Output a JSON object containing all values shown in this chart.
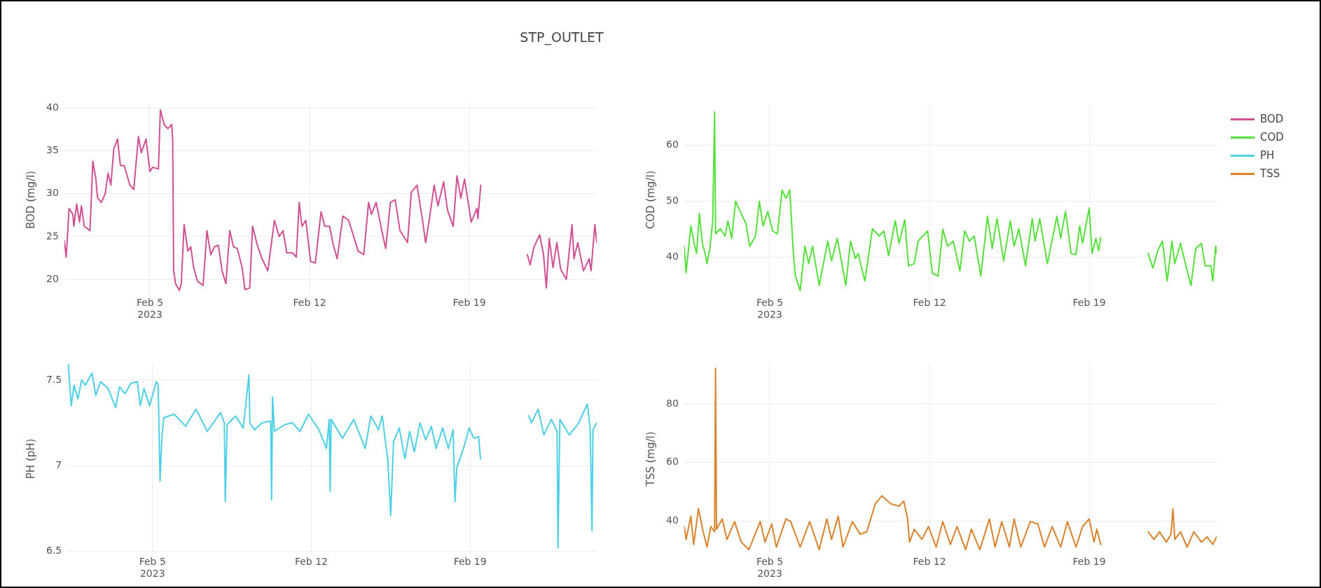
{
  "chart_data": [
    {
      "type": "line",
      "title": "STP_OUTLET",
      "ylabel": "BOD (mg/l)",
      "xlim": [
        "2023-02-01T06:00",
        "2023-02-24T14:00"
      ],
      "xticks": [
        {
          "value": "2023-02-05",
          "label": "Feb 5\n2023"
        },
        {
          "value": "2023-02-12",
          "label": "Feb 12"
        },
        {
          "value": "2023-02-19",
          "label": "Feb 19"
        }
      ],
      "ylim": [
        18.1,
        40.5
      ],
      "yticks": [
        20,
        25,
        30,
        35,
        40
      ],
      "grid": true,
      "legend": "top right",
      "marker": "none",
      "series": [
        {
          "name": "BOD",
          "color": "#d14f93",
          "x": [
            "2023-02-01T06:00",
            "2023-02-01T08:00",
            "2023-02-01T11:00",
            "2023-02-01T15:00",
            "2023-02-01T16:00",
            "2023-02-01T19:00",
            "2023-02-01T22:00",
            "2023-02-02T00:00",
            "2023-02-02T03:00",
            "2023-02-02T09:00",
            "2023-02-02T12:00",
            "2023-02-02T15:00",
            "2023-02-02T17:00",
            "2023-02-02T21:00",
            "2023-02-03T01:00",
            "2023-02-03T04:00",
            "2023-02-03T07:00",
            "2023-02-03T10:00",
            "2023-02-03T14:00",
            "2023-02-03T17:00",
            "2023-02-03T21:00",
            "2023-02-04T03:00",
            "2023-02-04T07:00",
            "2023-02-04T12:00",
            "2023-02-04T15:00",
            "2023-02-04T20:00",
            "2023-02-05T00:00",
            "2023-02-05T03:00",
            "2023-02-05T09:00",
            "2023-02-05T11:00",
            "2023-02-05T15:00",
            "2023-02-05T19:00",
            "2023-02-05T23:00",
            "2023-02-06T00:00",
            "2023-02-06T01:00",
            "2023-02-06T03:00",
            "2023-02-06T07:00",
            "2023-02-06T09:00",
            "2023-02-06T12:00",
            "2023-02-06T16:00",
            "2023-02-06T19:00",
            "2023-02-06T22:00",
            "2023-02-07T02:00",
            "2023-02-07T08:00",
            "2023-02-07T12:00",
            "2023-02-07T16:00",
            "2023-02-07T20:00",
            "2023-02-08T00:00",
            "2023-02-08T04:00",
            "2023-02-08T08:00",
            "2023-02-08T12:00",
            "2023-02-08T16:00",
            "2023-02-08T20:00",
            "2023-02-09T01:00",
            "2023-02-09T04:00",
            "2023-02-09T09:00",
            "2023-02-09T12:00",
            "2023-02-09T17:00",
            "2023-02-09T22:00",
            "2023-02-10T04:00",
            "2023-02-10T11:00",
            "2023-02-10T16:00",
            "2023-02-10T20:00",
            "2023-02-11T00:00",
            "2023-02-11T06:00",
            "2023-02-11T10:00",
            "2023-02-11T13:00",
            "2023-02-11T16:00",
            "2023-02-11T20:00",
            "2023-02-12T01:00",
            "2023-02-12T06:00",
            "2023-02-12T12:00",
            "2023-02-12T16:00",
            "2023-02-12T21:00",
            "2023-02-13T01:00",
            "2023-02-13T05:00",
            "2023-02-13T11:00",
            "2023-02-13T17:00",
            "2023-02-13T21:00",
            "2023-02-14T03:00",
            "2023-02-14T09:00",
            "2023-02-14T14:00",
            "2023-02-14T17:00",
            "2023-02-14T22:00",
            "2023-02-15T03:00",
            "2023-02-15T08:00",
            "2023-02-15T13:00",
            "2023-02-15T18:00",
            "2023-02-15T23:00",
            "2023-02-16T07:00",
            "2023-02-16T11:00",
            "2023-02-16T17:00",
            "2023-02-16T23:00",
            "2023-02-17T02:00",
            "2023-02-17T06:00",
            "2023-02-17T11:00",
            "2023-02-17T15:00",
            "2023-02-17T21:00",
            "2023-02-18T01:00",
            "2023-02-18T07:00",
            "2023-02-18T11:00",
            "2023-02-18T15:00",
            "2023-02-18T19:00",
            "2023-02-19T02:00",
            "2023-02-19T08:00",
            "2023-02-19T09:00",
            "2023-02-19T12:00",
            "2023-02-20T12:00",
            "2023-02-21T13:00",
            "2023-02-21T16:00",
            "2023-02-21T20:00",
            "2023-02-22T02:00",
            "2023-02-22T06:00",
            "2023-02-22T09:00",
            "2023-02-22T12:00",
            "2023-02-22T16:00",
            "2023-02-22T20:00",
            "2023-02-23T00:00",
            "2023-02-23T06:00",
            "2023-02-23T12:00",
            "2023-02-23T14:00",
            "2023-02-23T18:00",
            "2023-02-24T00:00",
            "2023-02-24T06:00",
            "2023-02-24T08:00",
            "2023-02-24T12:00",
            "2023-02-24T14:00"
          ],
          "values": [
            24.5,
            22.6,
            28.3,
            27.6,
            26.2,
            28.8,
            26.7,
            28.6,
            26.2,
            25.7,
            33.8,
            31.9,
            29.5,
            29.0,
            30.0,
            32.4,
            31.0,
            35.2,
            36.4,
            33.3,
            33.3,
            31.0,
            30.5,
            36.7,
            34.8,
            36.4,
            32.6,
            33.1,
            32.9,
            39.8,
            38.1,
            37.6,
            38.1,
            36.2,
            21.0,
            19.5,
            18.7,
            19.5,
            26.4,
            23.3,
            23.8,
            21.4,
            19.8,
            19.3,
            25.7,
            22.9,
            23.8,
            24.0,
            21.0,
            19.5,
            25.7,
            23.8,
            23.6,
            21.4,
            18.8,
            19.0,
            26.2,
            24.0,
            22.4,
            21.0,
            26.9,
            25.0,
            25.7,
            23.1,
            23.1,
            22.6,
            29.0,
            26.2,
            26.9,
            22.1,
            21.9,
            27.9,
            26.2,
            26.2,
            24.0,
            22.4,
            27.4,
            26.9,
            25.5,
            23.3,
            22.9,
            29.0,
            27.6,
            29.0,
            26.2,
            23.6,
            29.0,
            29.3,
            25.7,
            24.3,
            30.2,
            31.0,
            26.7,
            24.3,
            27.1,
            31.0,
            28.6,
            31.4,
            28.1,
            26.2,
            32.1,
            29.5,
            31.7,
            26.7,
            28.3,
            27.1,
            31.0,
            null,
            22.9,
            21.7,
            23.8,
            25.2,
            22.9,
            19.0,
            24.8,
            21.4,
            24.3,
            21.2,
            20.0,
            26.4,
            22.4,
            24.3,
            21.0,
            22.4,
            21.0,
            26.4,
            24.3
          ]
        }
      ]
    },
    {
      "type": "line",
      "ylabel": "COD (mg/l)",
      "xlim": [
        "2023-02-01T06:00",
        "2023-02-24T14:00"
      ],
      "xticks": [
        {
          "value": "2023-02-05",
          "label": "Feb 5\n2023"
        },
        {
          "value": "2023-02-12",
          "label": "Feb 12"
        },
        {
          "value": "2023-02-19",
          "label": "Feb 19"
        }
      ],
      "ylim": [
        33.2,
        67.3
      ],
      "yticks": [
        40,
        50,
        60
      ],
      "grid": true,
      "legend": "top right",
      "marker": "none",
      "series": [
        {
          "name": "COD",
          "color": "#55e03c",
          "x": [
            "2023-02-01T06:00",
            "2023-02-01T08:00",
            "2023-02-01T13:00",
            "2023-02-01T16:00",
            "2023-02-01T19:00",
            "2023-02-01T22:00",
            "2023-02-02T01:00",
            "2023-02-02T04:00",
            "2023-02-02T06:00",
            "2023-02-02T09:00",
            "2023-02-02T12:00",
            "2023-02-02T14:00",
            "2023-02-02T15:00",
            "2023-02-02T20:00",
            "2023-02-03T01:00",
            "2023-02-03T04:00",
            "2023-02-03T08:00",
            "2023-02-03T12:00",
            "2023-02-03T18:00",
            "2023-02-03T23:00",
            "2023-02-04T03:00",
            "2023-02-04T09:00",
            "2023-02-04T13:00",
            "2023-02-04T17:00",
            "2023-02-04T22:00",
            "2023-02-05T03:00",
            "2023-02-05T08:00",
            "2023-02-05T13:00",
            "2023-02-05T17:00",
            "2023-02-05T21:00",
            "2023-02-06T01:00",
            "2023-02-06T03:00",
            "2023-02-06T08:00",
            "2023-02-06T13:00",
            "2023-02-06T17:00",
            "2023-02-06T21:00",
            "2023-02-07T04:00",
            "2023-02-07T13:00",
            "2023-02-07T17:00",
            "2023-02-07T23:00",
            "2023-02-08T08:00",
            "2023-02-08T13:00",
            "2023-02-08T18:00",
            "2023-02-08T21:00",
            "2023-02-09T04:00",
            "2023-02-09T12:00",
            "2023-02-09T19:00",
            "2023-02-10T00:00",
            "2023-02-10T05:00",
            "2023-02-10T12:00",
            "2023-02-10T16:00",
            "2023-02-10T22:00",
            "2023-02-11T02:00",
            "2023-02-11T08:00",
            "2023-02-11T12:00",
            "2023-02-11T17:00",
            "2023-02-11T22:00",
            "2023-02-12T03:00",
            "2023-02-12T09:00",
            "2023-02-12T14:00",
            "2023-02-12T19:00",
            "2023-02-13T01:00",
            "2023-02-13T08:00",
            "2023-02-13T13:00",
            "2023-02-13T18:00",
            "2023-02-13T23:00",
            "2023-02-14T06:00",
            "2023-02-14T13:00",
            "2023-02-14T18:00",
            "2023-02-14T23:00",
            "2023-02-15T06:00",
            "2023-02-15T13:00",
            "2023-02-15T17:00",
            "2023-02-15T22:00",
            "2023-02-16T05:00",
            "2023-02-16T12:00",
            "2023-02-16T15:00",
            "2023-02-16T20:00",
            "2023-02-17T04:00",
            "2023-02-17T14:00",
            "2023-02-17T18:00",
            "2023-02-17T23:00",
            "2023-02-18T05:00",
            "2023-02-18T10:00",
            "2023-02-18T14:00",
            "2023-02-18T17:00",
            "2023-02-19T00:00",
            "2023-02-19T03:00",
            "2023-02-19T07:00",
            "2023-02-19T10:00",
            "2023-02-19T12:00",
            "2023-02-20T12:00",
            "2023-02-21T14:00",
            "2023-02-21T19:00",
            "2023-02-22T00:00",
            "2023-02-22T05:00",
            "2023-02-22T10:00",
            "2023-02-22T15:00",
            "2023-02-22T18:00",
            "2023-02-23T00:00",
            "2023-02-23T07:00",
            "2023-02-23T11:00",
            "2023-02-23T16:00",
            "2023-02-23T22:00",
            "2023-02-24T02:00",
            "2023-02-24T08:00",
            "2023-02-24T10:00",
            "2023-02-24T13:00",
            "2023-02-24T14:00"
          ],
          "values": [
            42.0,
            37.3,
            45.6,
            42.9,
            40.7,
            47.8,
            42.5,
            40.7,
            38.9,
            41.6,
            46.5,
            65.9,
            44.2,
            45.1,
            43.8,
            46.5,
            43.4,
            50.0,
            47.8,
            46.0,
            42.0,
            43.8,
            50.0,
            45.6,
            48.2,
            44.7,
            44.2,
            52.0,
            50.5,
            52.0,
            40.3,
            36.7,
            34.1,
            42.0,
            38.9,
            42.0,
            35.0,
            42.9,
            39.4,
            43.4,
            35.0,
            42.9,
            39.8,
            40.7,
            35.8,
            45.1,
            43.8,
            44.7,
            40.3,
            46.5,
            42.5,
            46.7,
            38.5,
            38.9,
            42.9,
            43.8,
            44.7,
            37.2,
            36.7,
            45.0,
            42.0,
            42.9,
            37.6,
            44.7,
            42.9,
            43.8,
            36.7,
            47.3,
            41.6,
            46.9,
            39.4,
            46.5,
            42.0,
            45.1,
            38.5,
            46.9,
            42.9,
            46.9,
            38.9,
            47.3,
            43.4,
            48.2,
            40.7,
            40.5,
            45.6,
            42.5,
            48.8,
            40.7,
            43.4,
            41.2,
            43.5,
            null,
            40.7,
            38.1,
            41.2,
            42.9,
            35.8,
            42.9,
            38.9,
            42.5,
            37.6,
            35.0,
            41.6,
            42.5,
            38.5,
            38.5,
            35.8,
            42.0,
            40.7
          ]
        }
      ]
    },
    {
      "type": "line",
      "ylabel": "PH (pH)",
      "xlim": [
        "2023-02-01T06:00",
        "2023-02-24T14:00"
      ],
      "xticks": [
        {
          "value": "2023-02-05",
          "label": "Feb 5\n2023"
        },
        {
          "value": "2023-02-12",
          "label": "Feb 12"
        },
        {
          "value": "2023-02-19",
          "label": "Feb 19"
        }
      ],
      "ylim": [
        6.48,
        7.6
      ],
      "yticks": [
        6.5,
        7,
        7.5
      ],
      "grid": true,
      "legend": "top right",
      "marker": "none",
      "series": [
        {
          "name": "PH",
          "color": "#4dcfe6",
          "x": [
            "2023-02-01T07:00",
            "2023-02-01T10:00",
            "2023-02-01T13:00",
            "2023-02-01T17:00",
            "2023-02-01T21:00",
            "2023-02-02T01:00",
            "2023-02-02T08:00",
            "2023-02-02T12:00",
            "2023-02-02T17:00",
            "2023-02-03T01:00",
            "2023-02-03T09:00",
            "2023-02-03T13:00",
            "2023-02-03T19:00",
            "2023-02-04T01:00",
            "2023-02-04T08:00",
            "2023-02-04T11:00",
            "2023-02-04T15:00",
            "2023-02-04T21:00",
            "2023-02-05T04:00",
            "2023-02-05T06:00",
            "2023-02-05T08:00",
            "2023-02-05T10:00",
            "2023-02-05T12:00",
            "2023-02-05T23:00",
            "2023-02-06T11:00",
            "2023-02-06T22:00",
            "2023-02-07T10:00",
            "2023-02-08T00:00",
            "2023-02-08T04:00",
            "2023-02-08T05:00",
            "2023-02-08T07:00",
            "2023-02-08T16:00",
            "2023-02-09T00:00",
            "2023-02-09T06:00",
            "2023-02-09T07:00",
            "2023-02-09T12:00",
            "2023-02-09T20:00",
            "2023-02-10T05:00",
            "2023-02-10T06:00",
            "2023-02-10T07:00",
            "2023-02-10T09:00",
            "2023-02-10T20:00",
            "2023-02-11T04:00",
            "2023-02-11T12:00",
            "2023-02-11T21:00",
            "2023-02-12T08:00",
            "2023-02-12T16:00",
            "2023-02-12T19:00",
            "2023-02-12T20:00",
            "2023-02-12T21:00",
            "2023-02-13T09:00",
            "2023-02-13T21:00",
            "2023-02-14T09:00",
            "2023-02-14T15:00",
            "2023-02-14T23:00",
            "2023-02-15T03:00",
            "2023-02-15T09:00",
            "2023-02-15T12:00",
            "2023-02-15T15:00",
            "2023-02-15T21:00",
            "2023-02-16T03:00",
            "2023-02-16T08:00",
            "2023-02-16T13:00",
            "2023-02-16T19:00",
            "2023-02-17T01:00",
            "2023-02-17T07:00",
            "2023-02-17T12:00",
            "2023-02-17T19:00",
            "2023-02-18T01:00",
            "2023-02-18T06:00",
            "2023-02-18T08:00",
            "2023-02-18T10:00",
            "2023-02-18T17:00",
            "2023-02-18T23:00",
            "2023-02-19T04:00",
            "2023-02-19T09:00",
            "2023-02-19T11:00",
            "2023-02-20T12:00",
            "2023-02-21T14:00",
            "2023-02-21T17:00",
            "2023-02-22T00:00",
            "2023-02-22T06:00",
            "2023-02-22T14:00",
            "2023-02-22T20:00",
            "2023-02-22T21:00",
            "2023-02-22T23:00",
            "2023-02-23T09:00",
            "2023-02-23T18:00",
            "2023-02-24T04:00",
            "2023-02-24T07:00",
            "2023-02-24T09:00",
            "2023-02-24T10:00",
            "2023-02-24T14:00"
          ],
          "values": [
            7.59,
            7.35,
            7.47,
            7.39,
            7.5,
            7.47,
            7.54,
            7.41,
            7.49,
            7.45,
            7.34,
            7.46,
            7.42,
            7.48,
            7.49,
            7.35,
            7.45,
            7.35,
            7.49,
            7.47,
            6.91,
            7.17,
            7.28,
            7.3,
            7.23,
            7.33,
            7.2,
            7.31,
            7.25,
            6.79,
            7.24,
            7.29,
            7.22,
            7.53,
            7.25,
            7.21,
            7.25,
            7.26,
            6.8,
            7.4,
            7.2,
            7.24,
            7.25,
            7.2,
            7.3,
            7.21,
            7.1,
            7.27,
            6.85,
            7.27,
            7.16,
            7.27,
            7.1,
            7.29,
            7.21,
            7.29,
            7.03,
            6.71,
            7.14,
            7.22,
            7.04,
            7.2,
            7.08,
            7.25,
            7.15,
            7.23,
            7.1,
            7.22,
            7.1,
            7.21,
            6.79,
            6.99,
            7.1,
            7.22,
            7.16,
            7.17,
            7.04,
            null,
            7.29,
            7.25,
            7.33,
            7.18,
            7.27,
            7.2,
            6.52,
            7.27,
            7.18,
            7.24,
            7.36,
            7.22,
            6.62,
            7.21,
            7.25
          ]
        }
      ]
    },
    {
      "type": "line",
      "ylabel": "TSS (mg/l)",
      "xlim": [
        "2023-02-01T06:00",
        "2023-02-24T14:00"
      ],
      "xticks": [
        {
          "value": "2023-02-05",
          "label": "Feb 5\n2023"
        },
        {
          "value": "2023-02-12",
          "label": "Feb 12"
        },
        {
          "value": "2023-02-19",
          "label": "Feb 19"
        }
      ],
      "ylim": [
        28.5,
        94
      ],
      "yticks": [
        40,
        60,
        80
      ],
      "grid": true,
      "legend": "top right",
      "marker": "none",
      "series": [
        {
          "name": "TSS",
          "color": "#d9822b",
          "x": [
            "2023-02-01T06:00",
            "2023-02-01T08:00",
            "2023-02-01T13:00",
            "2023-02-01T16:00",
            "2023-02-01T21:00",
            "2023-02-02T02:00",
            "2023-02-02T06:00",
            "2023-02-02T10:00",
            "2023-02-02T14:00",
            "2023-02-02T15:00",
            "2023-02-02T16:00",
            "2023-02-02T22:00",
            "2023-02-03T03:00",
            "2023-02-03T11:00",
            "2023-02-03T18:00",
            "2023-02-04T02:00",
            "2023-02-04T14:00",
            "2023-02-04T19:00",
            "2023-02-05T02:00",
            "2023-02-05T07:00",
            "2023-02-05T17:00",
            "2023-02-05T22:00",
            "2023-02-06T08:00",
            "2023-02-06T18:00",
            "2023-02-07T04:00",
            "2023-02-07T12:00",
            "2023-02-07T17:00",
            "2023-02-08T00:00",
            "2023-02-08T05:00",
            "2023-02-08T15:00",
            "2023-02-08T23:00",
            "2023-02-09T06:00",
            "2023-02-09T15:00",
            "2023-02-09T22:00",
            "2023-02-10T07:00",
            "2023-02-10T16:00",
            "2023-02-10T21:00",
            "2023-02-11T01:00",
            "2023-02-11T03:00",
            "2023-02-11T08:00",
            "2023-02-11T16:00",
            "2023-02-11T23:00",
            "2023-02-12T07:00",
            "2023-02-12T14:00",
            "2023-02-12T22:00",
            "2023-02-13T05:00",
            "2023-02-13T14:00",
            "2023-02-13T20:00",
            "2023-02-14T05:00",
            "2023-02-14T15:00",
            "2023-02-14T21:00",
            "2023-02-15T04:00",
            "2023-02-15T12:00",
            "2023-02-15T17:00",
            "2023-02-16T00:00",
            "2023-02-16T10:00",
            "2023-02-16T18:00",
            "2023-02-17T01:00",
            "2023-02-17T09:00",
            "2023-02-17T18:00",
            "2023-02-18T01:00",
            "2023-02-18T10:00",
            "2023-02-18T17:00",
            "2023-02-19T00:00",
            "2023-02-19T05:00",
            "2023-02-19T08:00",
            "2023-02-19T12:00",
            "2023-02-20T12:00",
            "2023-02-21T14:00",
            "2023-02-21T20:00",
            "2023-02-22T02:00",
            "2023-02-22T09:00",
            "2023-02-22T14:00",
            "2023-02-22T16:00",
            "2023-02-22T18:00",
            "2023-02-23T00:00",
            "2023-02-23T07:00",
            "2023-02-23T14:00",
            "2023-02-23T22:00",
            "2023-02-24T04:00",
            "2023-02-24T10:00",
            "2023-02-24T14:00"
          ],
          "values": [
            38.1,
            33.7,
            41.6,
            32.0,
            44.2,
            36.3,
            31.1,
            38.1,
            36.3,
            92.2,
            37.2,
            40.7,
            33.7,
            39.8,
            32.8,
            30.2,
            39.8,
            32.8,
            39.0,
            31.1,
            40.7,
            39.8,
            31.1,
            39.8,
            30.2,
            40.7,
            33.7,
            41.6,
            31.1,
            39.8,
            35.5,
            36.3,
            45.9,
            48.6,
            45.9,
            45.1,
            46.8,
            40.7,
            32.8,
            37.2,
            33.7,
            38.1,
            31.1,
            39.8,
            32.0,
            38.1,
            30.2,
            37.2,
            30.2,
            40.7,
            31.1,
            39.8,
            31.1,
            40.7,
            31.1,
            39.8,
            39.0,
            31.1,
            38.1,
            31.1,
            39.8,
            31.1,
            38.1,
            40.7,
            32.8,
            37.2,
            32.0,
            null,
            36.3,
            33.7,
            36.3,
            32.8,
            35.5,
            44.2,
            33.7,
            36.3,
            31.1,
            36.3,
            32.8,
            34.6,
            32.0,
            34.6
          ]
        }
      ]
    }
  ]
}
